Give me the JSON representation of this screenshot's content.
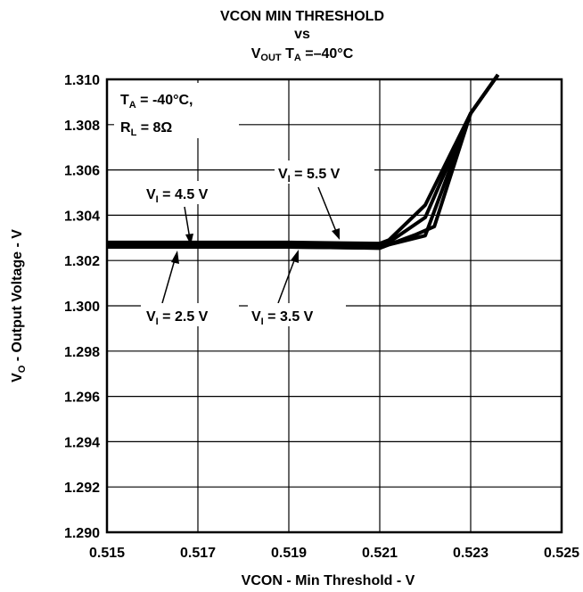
{
  "chart_data": {
    "type": "line",
    "title": {
      "line1": "VCON MIN THRESHOLD",
      "line2": "vs",
      "line3_main": "V",
      "line3_sub": "OUT",
      "line3_rest_main": " T",
      "line3_rest_sub": "A",
      "line3_end": " =–40°C"
    },
    "xlabel": "VCON - Min Threshold - V",
    "ylabel": {
      "main": "V",
      "sub": "O",
      "rest": " - Output Voltage - V"
    },
    "xlim": [
      0.515,
      0.525
    ],
    "ylim": [
      1.29,
      1.31
    ],
    "x_ticks": [
      "0.515",
      "0.517",
      "0.519",
      "0.521",
      "0.523",
      "0.525"
    ],
    "y_ticks": [
      "1.290",
      "1.292",
      "1.294",
      "1.296",
      "1.298",
      "1.300",
      "1.302",
      "1.304",
      "1.306",
      "1.308",
      "1.310"
    ],
    "grid": true,
    "conditions": {
      "ta": {
        "main": "T",
        "sub": "A",
        "rest": " = -40°C,"
      },
      "rl": {
        "main": "R",
        "sub": "L",
        "rest": " = 8Ω"
      }
    },
    "series": [
      {
        "name": {
          "main": "V",
          "sub": "I",
          "rest": " = 2.5 V"
        },
        "x": [
          0.515,
          0.517,
          0.519,
          0.521,
          0.5212,
          0.5218,
          0.5222,
          0.523,
          0.5236
        ],
        "y": [
          1.3026,
          1.3026,
          1.3026,
          1.30255,
          1.3027,
          1.30315,
          1.3035,
          1.3085,
          1.3102
        ]
      },
      {
        "name": {
          "main": "V",
          "sub": "I",
          "rest": " = 3.5 V"
        },
        "x": [
          0.515,
          0.517,
          0.519,
          0.521,
          0.5212,
          0.522,
          0.523,
          0.5236
        ],
        "y": [
          1.3026,
          1.3026,
          1.3026,
          1.30255,
          1.3027,
          1.3031,
          1.3085,
          1.3102
        ]
      },
      {
        "name": {
          "main": "V",
          "sub": "I",
          "rest": " = 4.5 V"
        },
        "x": [
          0.515,
          0.517,
          0.519,
          0.521,
          0.5212,
          0.522,
          0.523,
          0.5236
        ],
        "y": [
          1.3027,
          1.3027,
          1.3027,
          1.3026,
          1.3028,
          1.3039,
          1.3085,
          1.3102
        ]
      },
      {
        "name": {
          "main": "V",
          "sub": "I",
          "rest": " = 5.5 V"
        },
        "x": [
          0.515,
          0.517,
          0.519,
          0.521,
          0.5212,
          0.522,
          0.523,
          0.5236
        ],
        "y": [
          1.3028,
          1.3028,
          1.3028,
          1.30275,
          1.3029,
          1.30445,
          1.3085,
          1.3102
        ]
      }
    ]
  }
}
